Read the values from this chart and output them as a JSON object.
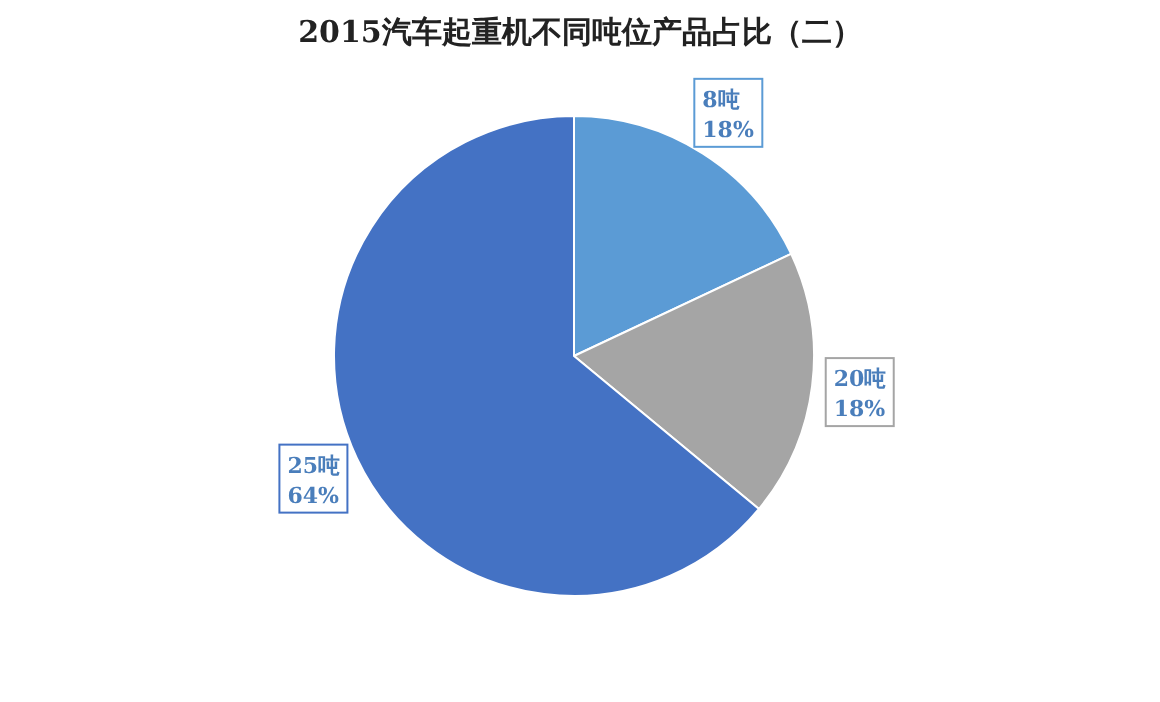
{
  "chart_data": {
    "type": "pie",
    "title": "2015汽车起重机不同吨位产品占比（二）",
    "categories": [
      "8吨",
      "20吨",
      "25吨"
    ],
    "values": [
      18,
      18,
      64
    ],
    "colors": [
      "#5b9bd5",
      "#a5a5a5",
      "#4472c4"
    ],
    "value_labels": [
      "18%",
      "18%",
      "64%"
    ]
  }
}
